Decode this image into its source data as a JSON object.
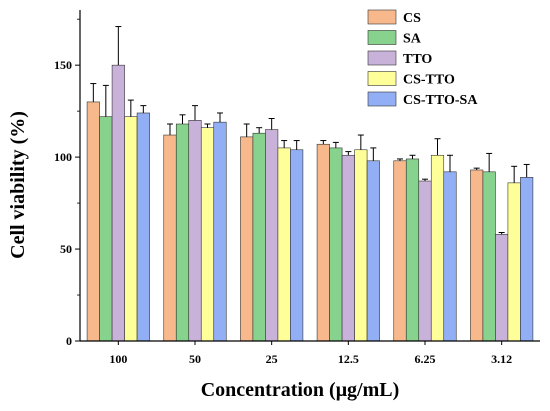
{
  "chart_data": {
    "type": "bar",
    "title": "",
    "xlabel": "Concentration (μg/mL)",
    "ylabel": "Cell viability (%)",
    "ylim": [
      0,
      180
    ],
    "yticks": [
      "0",
      "50",
      "100",
      "150"
    ],
    "categories": [
      "100",
      "50",
      "25",
      "12.5",
      "6.25",
      "3.12"
    ],
    "legend_position": "top-right",
    "series": [
      {
        "name": "CS",
        "color": "#f7b98c",
        "values": [
          130,
          112,
          111,
          107,
          98,
          93
        ],
        "errors": [
          10,
          6,
          7,
          2,
          1,
          1
        ]
      },
      {
        "name": "SA",
        "color": "#87d38e",
        "values": [
          122,
          118,
          113,
          105,
          99,
          92
        ],
        "errors": [
          17,
          5,
          3,
          3,
          2,
          10
        ]
      },
      {
        "name": "TTO",
        "color": "#c8b2da",
        "values": [
          150,
          120,
          115,
          101,
          87,
          58
        ],
        "errors": [
          21,
          8,
          6,
          2,
          1,
          1
        ]
      },
      {
        "name": "CS-TTO",
        "color": "#ffff99",
        "values": [
          122,
          116,
          105,
          104,
          101,
          86
        ],
        "errors": [
          9,
          2,
          4,
          8,
          9,
          9
        ]
      },
      {
        "name": "CS-TTO-SA",
        "color": "#92aff5",
        "values": [
          124,
          119,
          104,
          98,
          92,
          89
        ],
        "errors": [
          4,
          5,
          5,
          7,
          9,
          7
        ]
      }
    ]
  }
}
